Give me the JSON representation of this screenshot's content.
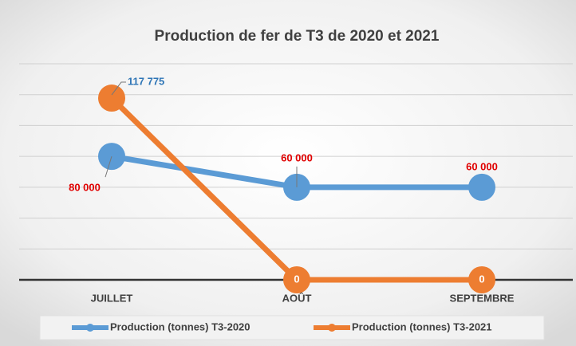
{
  "chart_data": {
    "type": "line",
    "title": "Production de fer de T3 de 2020 et 2021",
    "categories": [
      "JUILLET",
      "AOÛT",
      "SEPTEMBRE"
    ],
    "series": [
      {
        "name": "Production (tonnes) T3-2020",
        "color": "#5b9bd5",
        "values": [
          80000,
          60000,
          60000
        ],
        "value_labels": [
          "80 000",
          "60 000",
          "60 000"
        ]
      },
      {
        "name": "Production (tonnes) T3-2021",
        "color": "#ed7d31",
        "values": [
          117775,
          0,
          0
        ],
        "value_labels": [
          "117 775",
          "0",
          "0"
        ]
      }
    ],
    "ylim": [
      0,
      140000
    ],
    "yticks": [
      0,
      20000,
      40000,
      60000,
      80000,
      100000,
      120000,
      140000
    ],
    "grid": true,
    "legend": "bottom"
  }
}
